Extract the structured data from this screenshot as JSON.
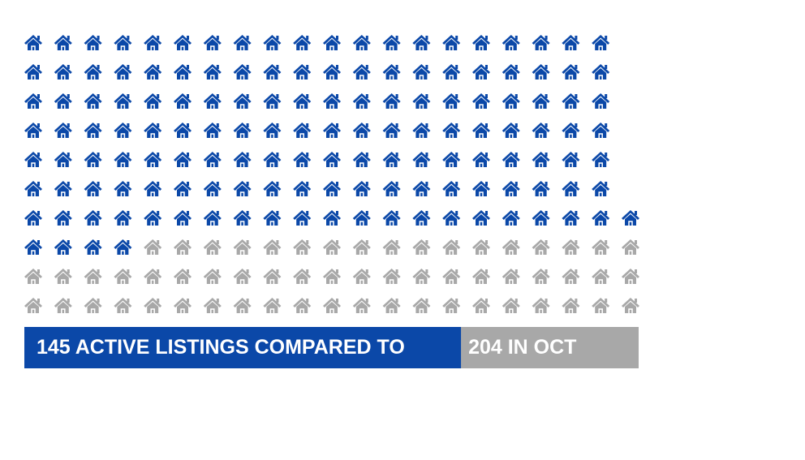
{
  "chart_data": {
    "type": "pictogram",
    "series": [
      {
        "name": "active",
        "color": "#0b48a8"
      },
      {
        "name": "previous",
        "color": "#a8a8a8"
      }
    ],
    "values": [
      145,
      204
    ],
    "value_labels": [
      "145 ACTIVE LISTINGS COMPARED TO",
      "204 IN OCT"
    ]
  }
}
